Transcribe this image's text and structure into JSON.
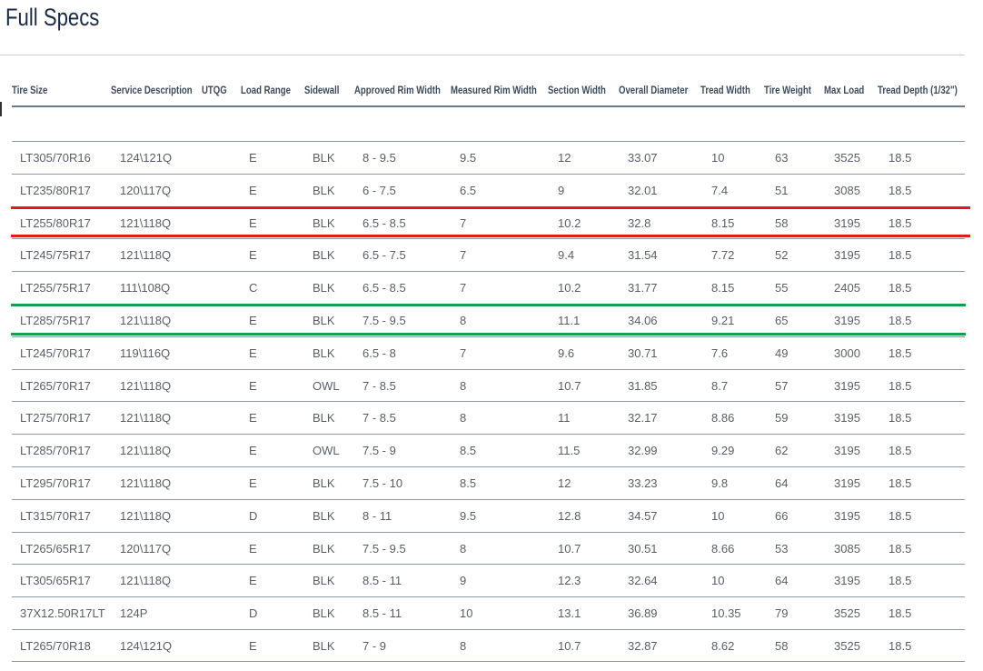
{
  "title": "Full Specs",
  "columns": [
    "Tire Size",
    "Service Description",
    "UTQG",
    "Load Range",
    "Sidewall",
    "Approved Rim Width",
    "Measured Rim Width",
    "Section Width",
    "Overall Diameter",
    "Tread Width",
    "Tire Weight",
    "Max Load",
    "Tread Depth (1/32\")"
  ],
  "rows": [
    [
      "LT305/70R16",
      "124\\121Q",
      "",
      "E",
      "BLK",
      "8 - 9.5",
      "9.5",
      "12",
      "33.07",
      "10",
      "63",
      "3525",
      "18.5"
    ],
    [
      "LT235/80R17",
      "120\\117Q",
      "",
      "E",
      "BLK",
      "6 - 7.5",
      "6.5",
      "9",
      "32.01",
      "7.4",
      "51",
      "3085",
      "18.5"
    ],
    [
      "LT255/80R17",
      "121\\118Q",
      "",
      "E",
      "BLK",
      "6.5 - 8.5",
      "7",
      "10.2",
      "32.8",
      "8.15",
      "58",
      "3195",
      "18.5"
    ],
    [
      "LT245/75R17",
      "121\\118Q",
      "",
      "E",
      "BLK",
      "6.5 - 7.5",
      "7",
      "9.4",
      "31.54",
      "7.72",
      "52",
      "3195",
      "18.5"
    ],
    [
      "LT255/75R17",
      "111\\108Q",
      "",
      "C",
      "BLK",
      "6.5 - 8.5",
      "7",
      "10.2",
      "31.77",
      "8.15",
      "55",
      "2405",
      "18.5"
    ],
    [
      "LT285/75R17",
      "121\\118Q",
      "",
      "E",
      "BLK",
      "7.5 - 9.5",
      "8",
      "11.1",
      "34.06",
      "9.21",
      "65",
      "3195",
      "18.5"
    ],
    [
      "LT245/70R17",
      "119\\116Q",
      "",
      "E",
      "BLK",
      "6.5 - 8",
      "7",
      "9.6",
      "30.71",
      "7.6",
      "49",
      "3000",
      "18.5"
    ],
    [
      "LT265/70R17",
      "121\\118Q",
      "",
      "E",
      "OWL",
      "7 - 8.5",
      "8",
      "10.7",
      "31.85",
      "8.7",
      "57",
      "3195",
      "18.5"
    ],
    [
      "LT275/70R17",
      "121\\118Q",
      "",
      "E",
      "BLK",
      "7 - 8.5",
      "8",
      "11",
      "32.17",
      "8.86",
      "59",
      "3195",
      "18.5"
    ],
    [
      "LT285/70R17",
      "121\\118Q",
      "",
      "E",
      "OWL",
      "7.5 - 9",
      "8.5",
      "11.5",
      "32.99",
      "9.29",
      "62",
      "3195",
      "18.5"
    ],
    [
      "LT295/70R17",
      "121\\118Q",
      "",
      "E",
      "BLK",
      "7.5 - 10",
      "8.5",
      "12",
      "33.23",
      "9.8",
      "64",
      "3195",
      "18.5"
    ],
    [
      "LT315/70R17",
      "121\\118Q",
      "",
      "D",
      "BLK",
      "8 - 11",
      "9.5",
      "12.8",
      "34.57",
      "10",
      "66",
      "3195",
      "18.5"
    ],
    [
      "LT265/65R17",
      "120\\117Q",
      "",
      "E",
      "BLK",
      "7.5 - 9.5",
      "8",
      "10.7",
      "30.51",
      "8.66",
      "53",
      "3085",
      "18.5"
    ],
    [
      "LT305/65R17",
      "121\\118Q",
      "",
      "E",
      "BLK",
      "8.5 - 11",
      "9",
      "12.3",
      "32.64",
      "10",
      "64",
      "3195",
      "18.5"
    ],
    [
      "37X12.50R17LT",
      "124P",
      "",
      "D",
      "BLK",
      "8.5 - 11",
      "10",
      "13.1",
      "36.89",
      "10.35",
      "79",
      "3525",
      "18.5"
    ],
    [
      "LT265/70R18",
      "124\\121Q",
      "",
      "E",
      "BLK",
      "7 - 9",
      "8",
      "10.7",
      "32.87",
      "8.62",
      "58",
      "3525",
      "18.5"
    ]
  ],
  "highlights": [
    {
      "row": 2,
      "color": "#e01b1b"
    },
    {
      "row": 5,
      "color": "#12a14a"
    }
  ]
}
